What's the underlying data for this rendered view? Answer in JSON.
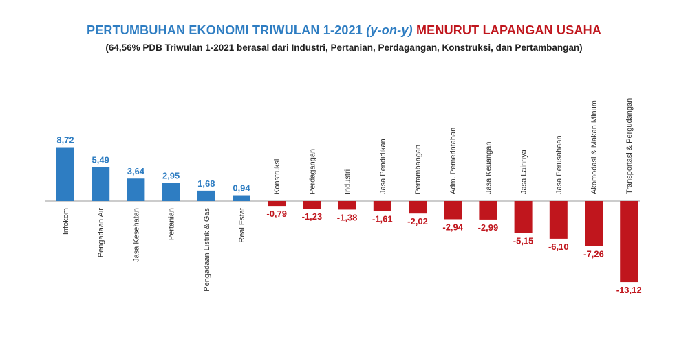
{
  "title": {
    "part1": "PERTUMBUHAN EKONOMI TRIWULAN 1-2021",
    "part2": "(y-on-y)",
    "part3": "MENURUT LAPANGAN USAHA"
  },
  "subtitle": "(64,56% PDB Triwulan 1-2021 berasal dari Industri, Pertanian, Perdagangan, Konstruksi, dan Pertambangan)",
  "colors": {
    "positive": "#2e7dc2",
    "negative": "#c0161d",
    "title_blue": "#2e7dc2",
    "title_red": "#c0161d"
  },
  "chart_data": {
    "type": "bar",
    "categories": [
      "Infokom",
      "Pengadaan Air",
      "Jasa Kesehatan",
      "Pertanian",
      "Pengadaan Listrik & Gas",
      "Real Estat",
      "Konstruksi",
      "Perdagangan",
      "Industri",
      "Jasa Pendidikan",
      "Pertambangan",
      "Adm. Pemerintahan",
      "Jasa Keuangan",
      "Jasa Lainnya",
      "Jasa Perusahaan",
      "Akomodasi & Makan Minum",
      "Transportasi & Pergudangan"
    ],
    "values": [
      8.72,
      5.49,
      3.64,
      2.95,
      1.68,
      0.94,
      -0.79,
      -1.23,
      -1.38,
      -1.61,
      -2.02,
      -2.94,
      -2.99,
      -5.15,
      -6.1,
      -7.26,
      -13.12
    ],
    "value_labels": [
      "8,72",
      "5,49",
      "3,64",
      "2,95",
      "1,68",
      "0,94",
      "-0,79",
      "-1,23",
      "-1,38",
      "-1,61",
      "-2,02",
      "-2,94",
      "-2,99",
      "-5,15",
      "-6,10",
      "-7,26",
      "-13,12"
    ],
    "title": "PERTUMBUHAN EKONOMI TRIWULAN 1-2021 (y-on-y) MENURUT LAPANGAN USAHA",
    "xlabel": "",
    "ylabel": "",
    "grid": false,
    "legend": "none"
  }
}
